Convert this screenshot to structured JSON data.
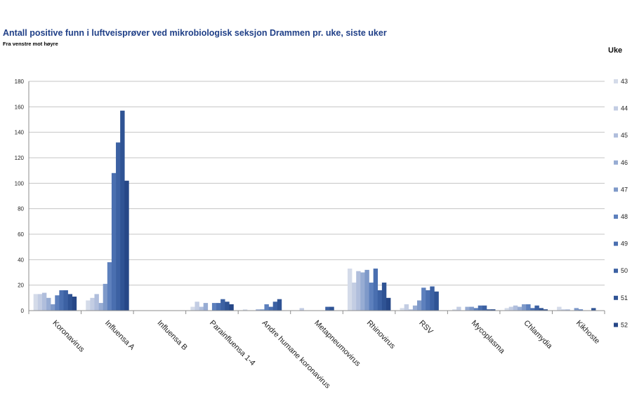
{
  "chart_data": {
    "type": "bar",
    "title": "Antall positive funn i luftveisprøver ved mikrobiologisk seksjon Drammen pr. uke, siste uker",
    "subtitle": "Fra venstre mot høyre",
    "legend_title": "Uke",
    "legend_position": "right",
    "grid": true,
    "ylim": [
      0,
      180
    ],
    "yticks": [
      0,
      20,
      40,
      60,
      80,
      100,
      120,
      140,
      160,
      180
    ],
    "categories": [
      "Koronavirus",
      "Influensa A",
      "Influensa B",
      "Parainfluensa 1-4",
      "Andre humane koronavirus",
      "Metapneumovirus",
      "Rhinovirus",
      "RSV",
      "Mycoplasma",
      "Chlamydia",
      "Kikhoste"
    ],
    "series": [
      {
        "name": "43",
        "color": "#d4dbe9",
        "values": [
          13,
          8,
          0,
          3,
          1,
          0,
          33,
          2,
          1,
          2,
          3
        ]
      },
      {
        "name": "44",
        "color": "#c3cde3",
        "values": [
          13,
          10,
          0,
          7,
          0,
          2,
          22,
          5,
          3,
          3,
          1
        ]
      },
      {
        "name": "45",
        "color": "#b0bedc",
        "values": [
          14,
          13,
          0,
          3,
          0,
          0,
          31,
          1,
          0,
          4,
          1
        ]
      },
      {
        "name": "46",
        "color": "#97acd3",
        "values": [
          10,
          6,
          0,
          6,
          1,
          0,
          30,
          4,
          3,
          3,
          0
        ]
      },
      {
        "name": "47",
        "color": "#7e99c9",
        "values": [
          5,
          21,
          0,
          0,
          1,
          0,
          32,
          8,
          3,
          5,
          2
        ]
      },
      {
        "name": "48",
        "color": "#5d80bd",
        "values": [
          12,
          38,
          0,
          6,
          5,
          0,
          22,
          18,
          2,
          5,
          1
        ]
      },
      {
        "name": "49",
        "color": "#4a6fb0",
        "values": [
          16,
          108,
          0,
          6,
          3,
          0,
          33,
          16,
          4,
          2,
          0
        ]
      },
      {
        "name": "50",
        "color": "#3c61a3",
        "values": [
          16,
          132,
          0,
          9,
          7,
          3,
          16,
          19,
          4,
          4,
          0
        ]
      },
      {
        "name": "51",
        "color": "#2f5394",
        "values": [
          13,
          157,
          0,
          7,
          9,
          3,
          22,
          15,
          1,
          2,
          2
        ]
      },
      {
        "name": "52",
        "color": "#264787",
        "values": [
          11,
          102,
          0,
          5,
          0,
          0,
          10,
          0,
          1,
          1,
          0
        ]
      }
    ]
  }
}
